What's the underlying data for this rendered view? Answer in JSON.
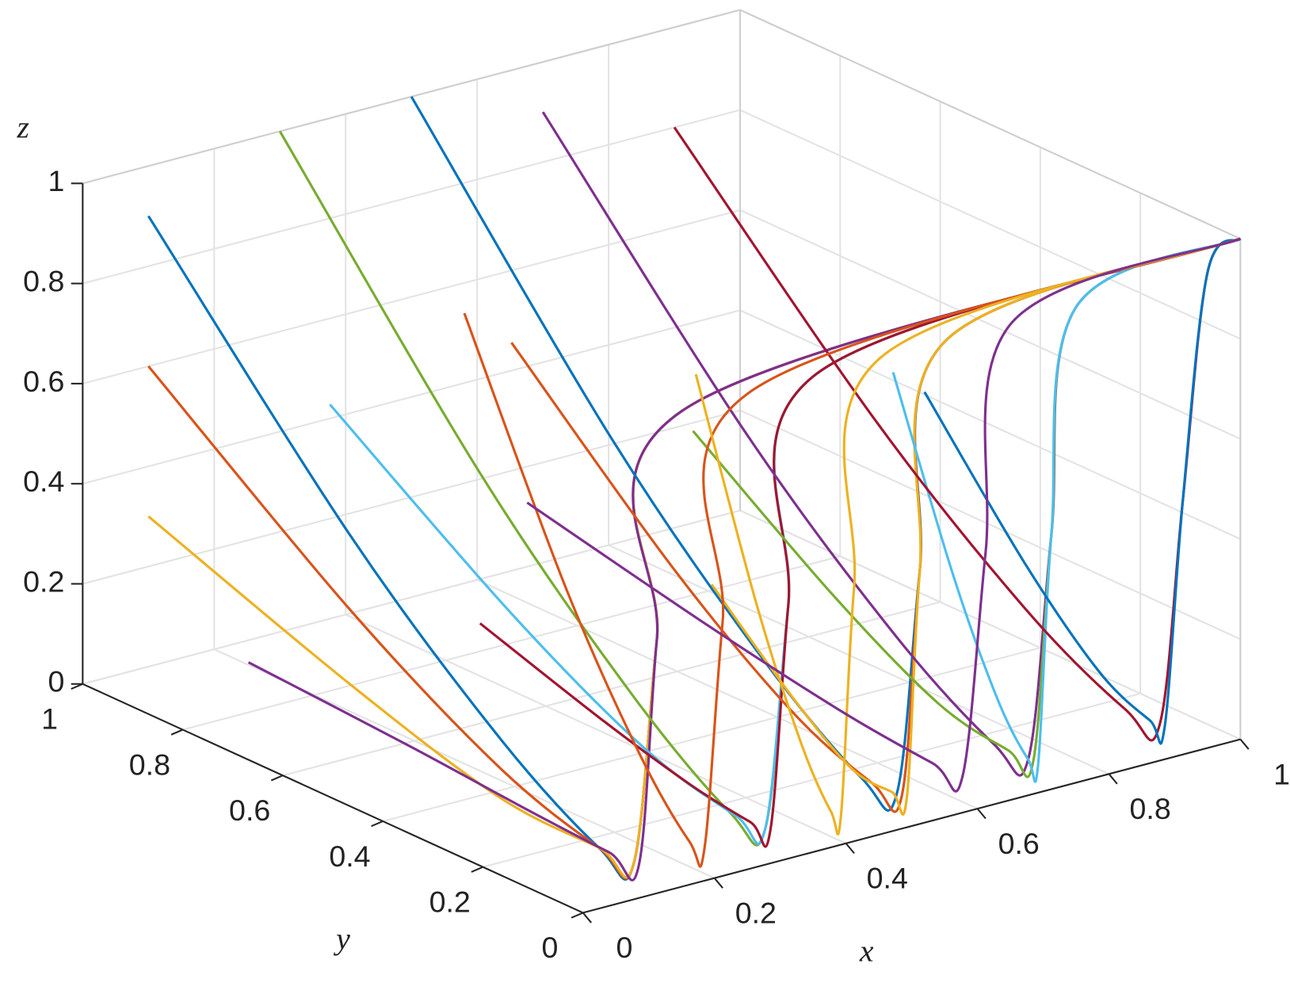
{
  "chart_data": {
    "type": "line3d",
    "xlabel": "x",
    "ylabel": "y",
    "zlabel": "z",
    "xlim": [
      0,
      1
    ],
    "ylim": [
      0,
      1
    ],
    "zlim": [
      0,
      1
    ],
    "xticks": [
      0,
      0.2,
      0.4,
      0.6,
      0.8,
      1
    ],
    "yticks": [
      0,
      0.2,
      0.4,
      0.6,
      0.8,
      1
    ],
    "zticks": [
      0,
      0.2,
      0.4,
      0.6,
      0.8,
      1
    ],
    "grid": true,
    "series": [
      {
        "color": "#0072BD",
        "x": [
          0.1,
          0.1,
          0.1,
          0.1,
          0.1,
          0.12,
          0.15,
          1
        ],
        "y": [
          1,
          0.6,
          0.3,
          0.1,
          0.03,
          0.01,
          0,
          0
        ],
        "z": [
          0.9,
          0.45,
          0.18,
          0.05,
          0.05,
          0.5,
          0.95,
          1
        ]
      },
      {
        "color": "#D95319",
        "x": [
          0.1,
          0.1,
          0.1,
          0.1,
          0.1,
          0.12,
          0.15,
          1
        ],
        "y": [
          1,
          0.6,
          0.3,
          0.1,
          0.03,
          0.01,
          0,
          0
        ],
        "z": [
          0.6,
          0.3,
          0.12,
          0.05,
          0.05,
          0.5,
          0.95,
          1
        ]
      },
      {
        "color": "#EDB120",
        "x": [
          0.1,
          0.1,
          0.1,
          0.1,
          0.1,
          0.12,
          0.15,
          1
        ],
        "y": [
          1,
          0.6,
          0.3,
          0.1,
          0.03,
          0.01,
          0,
          0
        ],
        "z": [
          0.3,
          0.15,
          0.06,
          0.05,
          0.05,
          0.5,
          0.95,
          1
        ]
      },
      {
        "color": "#7E2F8E",
        "x": [
          0.1,
          0.1,
          0.1,
          0.1,
          0.1,
          0.12,
          0.15,
          1
        ],
        "y": [
          0.8,
          0.48,
          0.24,
          0.08,
          0.02,
          0.01,
          0,
          0
        ],
        "z": [
          0.1,
          0.08,
          0.06,
          0.05,
          0.05,
          0.5,
          0.95,
          1
        ]
      },
      {
        "color": "#77AC30",
        "x": [
          0.3,
          0.3,
          0.3,
          0.3,
          0.3,
          0.32,
          0.35,
          1
        ],
        "y": [
          1,
          0.6,
          0.3,
          0.1,
          0.03,
          0.01,
          0,
          0
        ],
        "z": [
          1,
          0.5,
          0.2,
          0.05,
          0.05,
          0.5,
          0.95,
          1
        ]
      },
      {
        "color": "#4DBEEE",
        "x": [
          0.3,
          0.3,
          0.3,
          0.3,
          0.3,
          0.32,
          0.35,
          1
        ],
        "y": [
          0.9,
          0.54,
          0.27,
          0.09,
          0.03,
          0.01,
          0,
          0
        ],
        "z": [
          0.5,
          0.25,
          0.1,
          0.05,
          0.05,
          0.5,
          0.95,
          1
        ]
      },
      {
        "color": "#A2142F",
        "x": [
          0.3,
          0.3,
          0.3,
          0.3,
          0.3,
          0.32,
          0.35,
          1
        ],
        "y": [
          0.6,
          0.36,
          0.18,
          0.06,
          0.02,
          0.01,
          0,
          0
        ],
        "z": [
          0.2,
          0.12,
          0.07,
          0.05,
          0.05,
          0.5,
          0.95,
          1
        ]
      },
      {
        "color": "#0072BD",
        "x": [
          0.5,
          0.5,
          0.5,
          0.5,
          0.5,
          0.52,
          0.55,
          1
        ],
        "y": [
          1,
          0.6,
          0.3,
          0.1,
          0.03,
          0.01,
          0,
          0
        ],
        "z": [
          1,
          0.5,
          0.2,
          0.05,
          0.05,
          0.5,
          0.95,
          1
        ]
      },
      {
        "color": "#D95319",
        "x": [
          0.5,
          0.5,
          0.5,
          0.5,
          0.5,
          0.52,
          0.55,
          1
        ],
        "y": [
          0.8,
          0.48,
          0.24,
          0.08,
          0.02,
          0.01,
          0,
          0
        ],
        "z": [
          0.6,
          0.3,
          0.12,
          0.05,
          0.05,
          0.5,
          0.95,
          1
        ]
      },
      {
        "color": "#EDB120",
        "x": [
          0.5,
          0.5,
          0.5,
          0.5,
          0.5,
          0.52,
          0.55,
          1
        ],
        "y": [
          0.4,
          0.24,
          0.12,
          0.04,
          0.01,
          0.01,
          0,
          0
        ],
        "z": [
          0.3,
          0.15,
          0.06,
          0.05,
          0.05,
          0.5,
          0.95,
          1
        ]
      },
      {
        "color": "#7E2F8E",
        "x": [
          0.7,
          0.7,
          0.7,
          0.7,
          0.7,
          0.72,
          0.75,
          1
        ],
        "y": [
          1,
          0.6,
          0.3,
          0.1,
          0.03,
          0.01,
          0,
          0
        ],
        "z": [
          0.9,
          0.45,
          0.18,
          0.05,
          0.05,
          0.5,
          0.95,
          1
        ]
      },
      {
        "color": "#77AC30",
        "x": [
          0.7,
          0.7,
          0.7,
          0.7,
          0.7,
          0.72,
          0.75,
          1
        ],
        "y": [
          0.7,
          0.42,
          0.21,
          0.07,
          0.02,
          0.01,
          0,
          0
        ],
        "z": [
          0.4,
          0.2,
          0.08,
          0.05,
          0.05,
          0.5,
          0.95,
          1
        ]
      },
      {
        "color": "#4DBEEE",
        "x": [
          0.7,
          0.7,
          0.7,
          0.7,
          0.7,
          0.72,
          0.75,
          1
        ],
        "y": [
          0.3,
          0.18,
          0.09,
          0.03,
          0.01,
          0.01,
          0,
          0
        ],
        "z": [
          0.7,
          0.35,
          0.14,
          0.05,
          0.05,
          0.5,
          0.95,
          1
        ]
      },
      {
        "color": "#A2142F",
        "x": [
          0.9,
          0.9,
          0.9,
          0.9,
          0.9,
          0.92,
          0.95,
          1
        ],
        "y": [
          1,
          0.6,
          0.3,
          0.1,
          0.03,
          0.01,
          0,
          0
        ],
        "z": [
          0.8,
          0.4,
          0.16,
          0.05,
          0.05,
          0.5,
          0.95,
          1
        ]
      },
      {
        "color": "#0072BD",
        "x": [
          0.9,
          0.9,
          0.9,
          0.9,
          0.9,
          0.92,
          0.95,
          1
        ],
        "y": [
          0.5,
          0.3,
          0.15,
          0.05,
          0.02,
          0.01,
          0,
          0
        ],
        "z": [
          0.5,
          0.25,
          0.1,
          0.05,
          0.05,
          0.5,
          0.95,
          1
        ]
      },
      {
        "color": "#D95319",
        "x": [
          0.2,
          0.2,
          0.2,
          0.2,
          0.2,
          0.22,
          0.25,
          1
        ],
        "y": [
          0.5,
          0.3,
          0.15,
          0.05,
          0.02,
          0.01,
          0,
          0
        ],
        "z": [
          0.9,
          0.45,
          0.18,
          0.05,
          0.05,
          0.5,
          0.95,
          1
        ]
      },
      {
        "color": "#EDB120",
        "x": [
          0.4,
          0.4,
          0.4,
          0.4,
          0.4,
          0.42,
          0.45,
          1
        ],
        "y": [
          0.3,
          0.18,
          0.09,
          0.03,
          0.01,
          0.01,
          0,
          0
        ],
        "z": [
          0.8,
          0.4,
          0.16,
          0.05,
          0.05,
          0.5,
          0.95,
          1
        ]
      },
      {
        "color": "#7E2F8E",
        "x": [
          0.6,
          0.6,
          0.6,
          0.6,
          0.6,
          0.62,
          0.65,
          1
        ],
        "y": [
          0.9,
          0.54,
          0.27,
          0.09,
          0.03,
          0.01,
          0,
          0
        ],
        "z": [
          0.2,
          0.12,
          0.07,
          0.05,
          0.05,
          0.5,
          0.95,
          1
        ]
      }
    ]
  }
}
